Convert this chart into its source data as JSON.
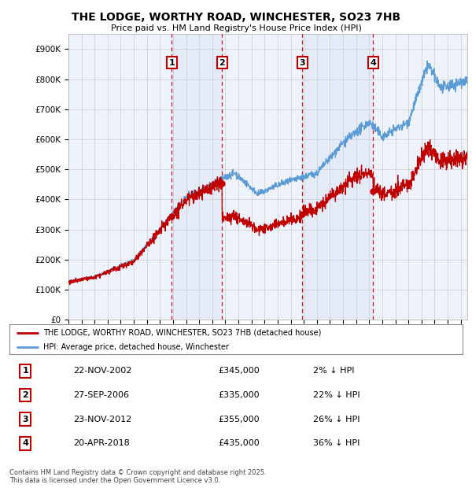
{
  "title": "THE LODGE, WORTHY ROAD, WINCHESTER, SO23 7HB",
  "subtitle": "Price paid vs. HM Land Registry's House Price Index (HPI)",
  "ylabel_ticks": [
    "£0",
    "£100K",
    "£200K",
    "£300K",
    "£400K",
    "£500K",
    "£600K",
    "£700K",
    "£800K",
    "£900K"
  ],
  "ylim": [
    0,
    950000
  ],
  "xlim_start": 1995.0,
  "xlim_end": 2025.5,
  "legend_line1": "THE LODGE, WORTHY ROAD, WINCHESTER, SO23 7HB (detached house)",
  "legend_line2": "HPI: Average price, detached house, Winchester",
  "transactions": [
    {
      "num": 1,
      "date": "22-NOV-2002",
      "price": 345000,
      "pct": "2%",
      "dir": "↓",
      "x_year": 2002.89
    },
    {
      "num": 2,
      "date": "27-SEP-2006",
      "price": 335000,
      "pct": "22%",
      "dir": "↓",
      "x_year": 2006.74
    },
    {
      "num": 3,
      "date": "23-NOV-2012",
      "price": 355000,
      "pct": "26%",
      "dir": "↓",
      "x_year": 2012.89
    },
    {
      "num": 4,
      "date": "20-APR-2018",
      "price": 435000,
      "pct": "36%",
      "dir": "↓",
      "x_year": 2018.3
    }
  ],
  "footnote": "Contains HM Land Registry data © Crown copyright and database right 2025.\nThis data is licensed under the Open Government Licence v3.0.",
  "hpi_color": "#5b9bd5",
  "price_color": "#c00000",
  "transaction_box_color": "#c00000",
  "grid_color": "#cccccc",
  "background_color": "#ffffff",
  "chart_bg": "#eef2fb"
}
